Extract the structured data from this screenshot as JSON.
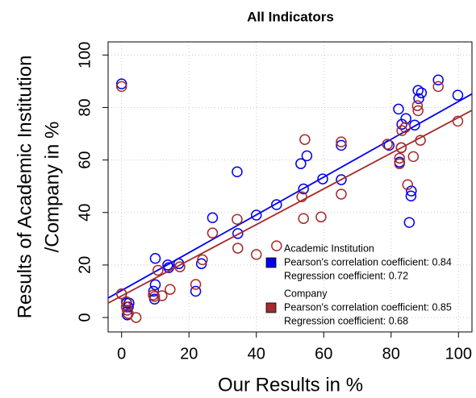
{
  "chart_data": {
    "type": "scatter",
    "title": "All Indicators",
    "x_label": "Our Results in %",
    "y_label": [
      "Results of Academic Institution",
      "/Company in %"
    ],
    "xlim": [
      -4,
      104
    ],
    "ylim": [
      -5.5,
      105
    ],
    "xticks": [
      0,
      20,
      40,
      60,
      80,
      100
    ],
    "yticks": [
      0,
      20,
      40,
      60,
      80,
      100
    ],
    "grid": true,
    "series": [
      {
        "name": "Academic Institution",
        "color": "#0000ee",
        "legend_notes": [
          "Pearson's correlation coefficient: 0.84",
          "Regression coefficient:  0.72"
        ],
        "trend": {
          "intercept": 10.3,
          "slope": 0.72
        },
        "x": [
          0,
          0,
          1.5,
          2,
          1.7,
          2.2,
          10,
          10,
          9.5,
          9.8,
          13.7,
          14,
          17,
          22,
          23.7,
          27,
          34.3,
          34.5,
          40,
          46,
          53.2,
          54,
          55,
          59.7,
          65.2,
          65.2,
          79.4,
          82.2,
          82.5,
          83,
          83.2,
          84.4,
          85.4,
          86,
          85.9,
          87,
          88,
          88.2,
          89,
          94,
          99.8
        ],
        "y": [
          89,
          9,
          5.5,
          4,
          1,
          5.5,
          22.5,
          12.5,
          10,
          7,
          20,
          19,
          20.5,
          10,
          20.5,
          38,
          55.5,
          32,
          39,
          43,
          58.6,
          49,
          61.6,
          52.8,
          65.6,
          52.5,
          65.6,
          79.4,
          59.2,
          64.7,
          73.6,
          75.8,
          36.2,
          48.2,
          46.3,
          73.3,
          86.5,
          83.4,
          85.6,
          90.5,
          84.7
        ]
      },
      {
        "name": "Company",
        "color": "#a52a2a",
        "legend_notes": [
          "Pearson's correlation coefficient: 0.85",
          "Regression coefficient: 0.68"
        ],
        "trend": {
          "intercept": 8.2,
          "slope": 0.68
        },
        "x": [
          0,
          0,
          1.4,
          1.7,
          2,
          1.4,
          4.3,
          9.4,
          9.8,
          10.8,
          12,
          14.4,
          17.3,
          22,
          24,
          27,
          34.3,
          34.5,
          40,
          46,
          53.5,
          54.4,
          54,
          59.2,
          65.2,
          65.2,
          78.9,
          82.5,
          82.5,
          83,
          83.2,
          84.2,
          84.9,
          86.6,
          87.8,
          88,
          88.7,
          94,
          99.8
        ],
        "y": [
          88,
          9,
          4,
          2.8,
          1.5,
          6,
          0,
          8.6,
          8,
          18,
          8.3,
          10.7,
          19.3,
          12.6,
          22,
          32.2,
          37.4,
          26.4,
          24,
          27.3,
          46,
          67.8,
          37.7,
          38.3,
          47,
          66.9,
          66,
          60.7,
          58.6,
          64.7,
          71.2,
          72.4,
          50.6,
          61.3,
          80.7,
          78.8,
          67.5,
          88,
          74.8
        ]
      }
    ]
  }
}
